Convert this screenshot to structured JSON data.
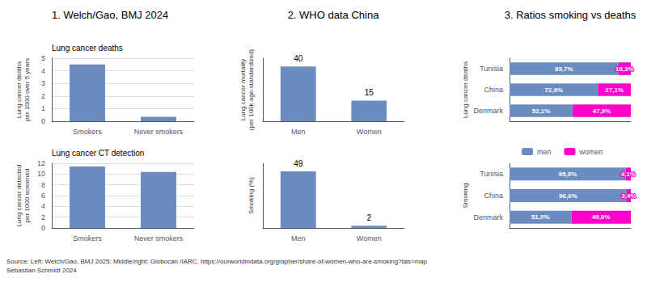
{
  "titles": [
    "1. Welch/Gao, BMJ 2024",
    "2. WHO data China",
    "3. Ratios smoking vs deaths"
  ],
  "annotations": [
    "Source: Left: Welch/Gao, BMJ 2025; Middle/right: Globocan /IARC, https://ourworldindata.org/grapher/share-of-women-who-are-smoking?tab=map\nSebastian Schmidt 2024"
  ],
  "chart_data": [
    {
      "type": "bar",
      "title": "Lung cancer deaths",
      "ylabel": "Lung cancer deaths\nper 1000 over 5 years",
      "categories": [
        "Smokers",
        "Never smokers"
      ],
      "values": [
        4.5,
        0.35
      ],
      "color": "#6B8CBE",
      "ylim": [
        0,
        5
      ],
      "yticks": [
        0,
        1,
        2,
        3,
        4,
        5
      ],
      "grid": true
    },
    {
      "type": "bar",
      "title": "Lung cancer CT detection",
      "ylabel": "Lung cancer detected\nper 1000 screened",
      "categories": [
        "Smokers",
        "Never smokers"
      ],
      "values": [
        11.4,
        10.4
      ],
      "color": "#6B8CBE",
      "ylim": [
        0,
        12
      ],
      "yticks": [
        0,
        2,
        4,
        6,
        8,
        10,
        12
      ],
      "grid": true
    },
    {
      "type": "bar",
      "ylabel": "Lung cancer mortality\n(per 100k age-standardized)",
      "categories": [
        "Men",
        "Women"
      ],
      "values": [
        40,
        15
      ],
      "color": "#6B8CBE",
      "ylim": [
        0,
        46
      ],
      "yticks": [],
      "data_labels": true,
      "tick_labels": "x",
      "grid": false
    },
    {
      "type": "bar",
      "ylabel": "Smoking (%)",
      "categories": [
        "Men",
        "Women"
      ],
      "values": [
        49,
        2
      ],
      "color": "#6B8CBE",
      "ylim": [
        0,
        56
      ],
      "yticks": [],
      "data_labels": true,
      "tick_labels": "x",
      "grid": false
    },
    {
      "type": "bar",
      "orientation": "horizontal",
      "stacked": true,
      "ylabel": "Lung cancer deaths",
      "categories": [
        "Tunisia",
        "China",
        "Denmark"
      ],
      "series": [
        {
          "name": "men",
          "color": "#6B8CBE",
          "values": [
            89.7,
            72.9,
            52.1
          ],
          "value_labels": [
            "89,7%",
            "72,9%",
            "52,1%"
          ]
        },
        {
          "name": "women",
          "color": "#FF00CC",
          "values": [
            10.3,
            27.1,
            47.9
          ],
          "value_labels": [
            "10,3%",
            "27,1%",
            "47,9%"
          ]
        }
      ],
      "xlim": [
        0,
        100
      ],
      "xticks": [],
      "data_labels": true,
      "tick_labels": "y",
      "grid": false
    },
    {
      "type": "bar",
      "orientation": "horizontal",
      "stacked": true,
      "ylabel": "Smoking",
      "categories": [
        "Tunisia",
        "China",
        "Denmark"
      ],
      "series": [
        {
          "name": "men",
          "color": "#6B8CBE",
          "values": [
            95.9,
            96.6,
            51.0
          ],
          "value_labels": [
            "95,9%",
            "96,6%",
            "51,0%"
          ]
        },
        {
          "name": "women",
          "color": "#FF00CC",
          "values": [
            4.1,
            3.4,
            49.0
          ],
          "value_labels": [
            "4,1%",
            "3,4%",
            "49,0%"
          ]
        }
      ],
      "xlim": [
        0,
        100
      ],
      "xticks": [],
      "data_labels": true,
      "tick_labels": "y",
      "grid": false,
      "legend": "top"
    }
  ]
}
